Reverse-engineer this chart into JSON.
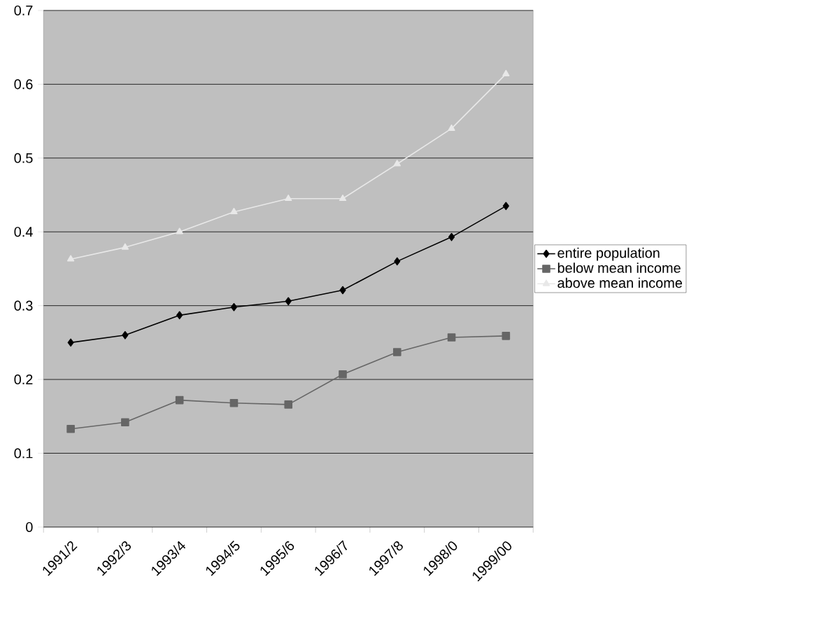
{
  "chart_data": {
    "type": "line",
    "categories": [
      "1991/2",
      "1992/3",
      "1993/4",
      "1994/5",
      "1995/6",
      "1996/7",
      "1997/8",
      "1998/0",
      "1999/00"
    ],
    "series": [
      {
        "name": "entire population",
        "color": "#000000",
        "marker": "diamond",
        "values": [
          0.25,
          0.26,
          0.287,
          0.298,
          0.306,
          0.321,
          0.36,
          0.393,
          0.435
        ]
      },
      {
        "name": "below mean income",
        "color": "#666666",
        "marker": "square",
        "values": [
          0.133,
          0.142,
          0.172,
          0.168,
          0.166,
          0.207,
          0.237,
          0.257,
          0.259
        ]
      },
      {
        "name": "above mean income",
        "color": "#e8e8e8",
        "marker": "triangle",
        "values": [
          0.363,
          0.379,
          0.4,
          0.427,
          0.445,
          0.445,
          0.492,
          0.54,
          0.614
        ]
      }
    ],
    "ylim": [
      0,
      0.7
    ],
    "yticks": [
      0,
      0.1,
      0.2,
      0.3,
      0.4,
      0.5,
      0.6,
      0.7
    ],
    "grid": "y",
    "legend": "right",
    "line_style": "solid"
  }
}
